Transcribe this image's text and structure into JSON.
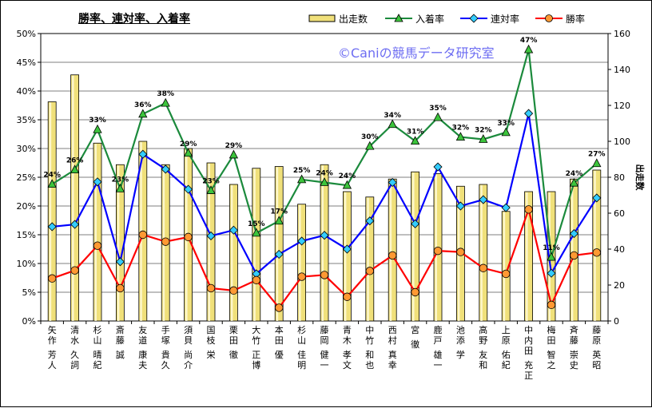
{
  "watermark": "©Caniの競馬データ研究室",
  "chart_data": {
    "type": "bar+line",
    "title": "勝率、連対率、入着率",
    "categories": [
      "矢作 芳人",
      "清水 久詞",
      "杉山 晴紀",
      "斎藤 誠",
      "友道 康夫",
      "手塚 貴久",
      "須貝 尚介",
      "国枝 栄",
      "栗田 徹",
      "大竹 正博",
      "本田 優",
      "杉山 佳明",
      "藤岡 健一",
      "青木 孝文",
      "中竹 和也",
      "西村 真幸",
      "宮 徹",
      "鹿戸 雄一",
      "池添 学",
      "高野 友和",
      "上原 佑紀",
      "中内田 充正",
      "梅田 智之",
      "斉藤 崇史",
      "藤原 英昭"
    ],
    "left_axis": {
      "ticks": [
        "0%",
        "5%",
        "10%",
        "15%",
        "20%",
        "25%",
        "30%",
        "35%",
        "40%",
        "45%",
        "50%"
      ],
      "min": 0,
      "max": 50
    },
    "right_axis": {
      "label": "出走数",
      "ticks": [
        "0",
        "20",
        "40",
        "60",
        "80",
        "100",
        "120",
        "140",
        "160"
      ],
      "min": 0,
      "max": 160
    },
    "legend": {
      "position": "top",
      "entries": [
        "出走数",
        "入着率",
        "連対率",
        "勝率"
      ]
    },
    "series": [
      {
        "name": "出走数",
        "type": "bar",
        "axis": "right",
        "color": "#f0e07a",
        "values": [
          122,
          137,
          99,
          87,
          100,
          87,
          96,
          88,
          76,
          85,
          86,
          65,
          87,
          72,
          69,
          79,
          83,
          82,
          75,
          76,
          61,
          72,
          72,
          79,
          84
        ]
      },
      {
        "name": "入着率",
        "type": "line",
        "axis": "left",
        "color": "#1b8a3c",
        "values": [
          23.8,
          26.3,
          33.3,
          23.0,
          36.0,
          37.9,
          29.2,
          22.7,
          28.9,
          15.3,
          17.4,
          24.6,
          24.1,
          23.6,
          30.4,
          34.2,
          31.3,
          35.4,
          32.0,
          31.6,
          32.8,
          47.2,
          11.1,
          24.0,
          27.4
        ],
        "labels": [
          "24%",
          "26%",
          "33%",
          "23%",
          "36%",
          "38%",
          "29%",
          "23%",
          "29%",
          "15%",
          "17%",
          "25%",
          "24%",
          "24%",
          "30%",
          "34%",
          "31%",
          "35%",
          "32%",
          "32%",
          "33%",
          "47%",
          "11%",
          "24%",
          "27%"
        ]
      },
      {
        "name": "連対率",
        "type": "line",
        "axis": "left",
        "color": "#0000ff",
        "values": [
          16.4,
          16.8,
          24.2,
          10.3,
          29.0,
          26.4,
          22.9,
          14.8,
          15.8,
          8.2,
          11.6,
          13.9,
          14.9,
          12.5,
          17.4,
          24.1,
          16.9,
          26.8,
          20.0,
          21.1,
          19.7,
          36.1,
          8.3,
          15.2,
          21.4
        ]
      },
      {
        "name": "勝率",
        "type": "line",
        "axis": "left",
        "color": "#ff0000",
        "values": [
          7.4,
          8.8,
          13.1,
          5.7,
          15.0,
          13.8,
          14.6,
          5.7,
          5.3,
          7.1,
          2.3,
          7.7,
          8.0,
          4.2,
          8.7,
          11.4,
          5.0,
          12.2,
          12.0,
          9.2,
          8.2,
          19.4,
          2.8,
          11.4,
          11.9
        ]
      }
    ]
  }
}
